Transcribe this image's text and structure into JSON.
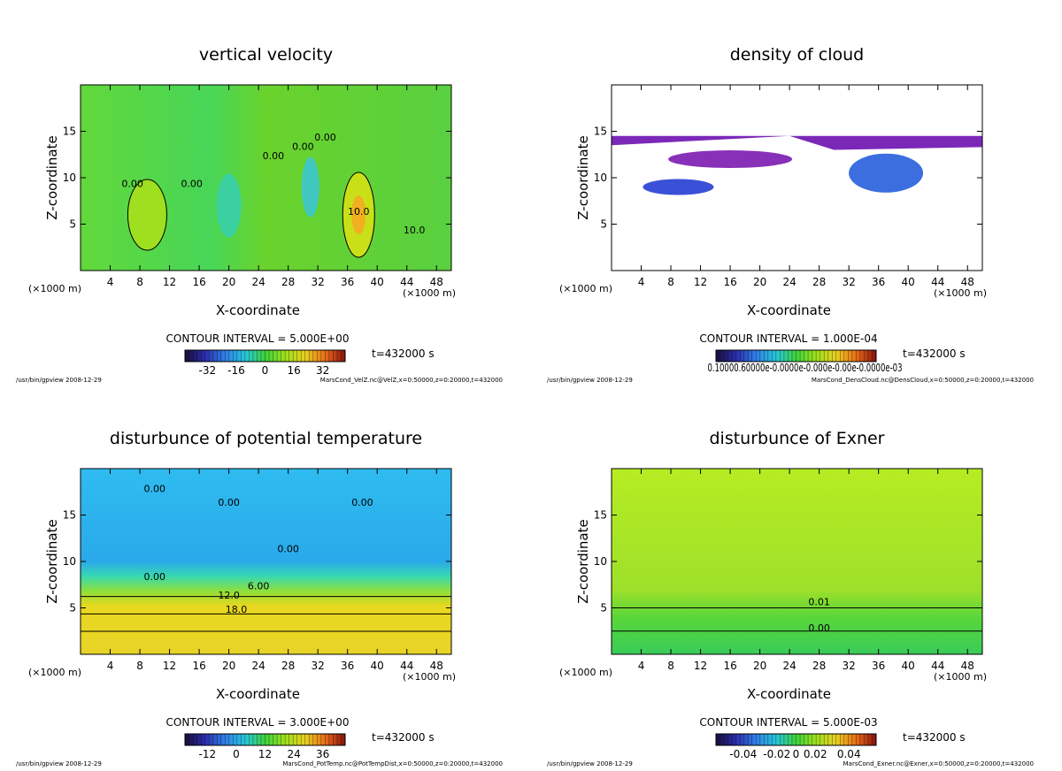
{
  "chart_data": [
    {
      "type": "heatmap",
      "title": "vertical velocity",
      "xlabel": "X-coordinate",
      "ylabel": "Z-coordinate",
      "x_unit": "(×1000 m)",
      "xlim": [
        0,
        50
      ],
      "ylim": [
        0,
        20
      ],
      "x_ticks": [
        4,
        8,
        12,
        16,
        20,
        24,
        28,
        32,
        36,
        40,
        44,
        48
      ],
      "y_ticks": [
        5,
        10,
        15
      ],
      "contour_interval": "CONTOUR INTERVAL = 5.000E+00",
      "time": "t=432000 s",
      "colorbar_ticks": [
        "-32",
        "-16",
        "0",
        "16",
        "32"
      ],
      "contour_labels": [
        "0.00",
        "0.00",
        "0.00",
        "0.00",
        "0.00",
        "10.0",
        "10.0"
      ],
      "footer_left": "/usr/bin/gpview  2008-12-29",
      "footer_right": "MarsCond_VelZ.nc@VelZ,x=0:50000,z=0:20000,t=432000"
    },
    {
      "type": "heatmap",
      "title": "density of cloud",
      "xlabel": "X-coordinate",
      "ylabel": "Z-coordinate",
      "x_unit": "(×1000 m)",
      "xlim": [
        0,
        50
      ],
      "ylim": [
        0,
        20
      ],
      "x_ticks": [
        4,
        8,
        12,
        16,
        20,
        24,
        28,
        32,
        36,
        40,
        44,
        48
      ],
      "y_ticks": [
        5,
        10,
        15
      ],
      "contour_interval": "CONTOUR INTERVAL = 1.000E-04",
      "time": "t=432000 s",
      "colorbar_ticks_text": "0.10000.60000e-0.0000e-0.000e-0.00e-0.0000e-03",
      "footer_left": "/usr/bin/gpview  2008-12-29",
      "footer_right": "MarsCond_DensCloud.nc@DensCloud,x=0:50000,z=0:20000,t=432000"
    },
    {
      "type": "heatmap",
      "title": "disturbunce of potential temperature",
      "xlabel": "X-coordinate",
      "ylabel": "Z-coordinate",
      "x_unit": "(×1000 m)",
      "xlim": [
        0,
        50
      ],
      "ylim": [
        0,
        20
      ],
      "x_ticks": [
        4,
        8,
        12,
        16,
        20,
        24,
        28,
        32,
        36,
        40,
        44,
        48
      ],
      "y_ticks": [
        5,
        10,
        15
      ],
      "contour_interval": "CONTOUR INTERVAL = 3.000E+00",
      "time": "t=432000 s",
      "colorbar_ticks": [
        "-12",
        "0",
        "12",
        "24",
        "36"
      ],
      "contour_labels": [
        "0.00",
        "0.00",
        "0.00",
        "0.00",
        "0.00",
        "6.00",
        "12.0",
        "18.0"
      ],
      "footer_left": "/usr/bin/gpview  2008-12-29",
      "footer_right": "MarsCond_PotTemp.nc@PotTempDist,x=0:50000,z=0:20000,t=432000"
    },
    {
      "type": "heatmap",
      "title": "disturbunce of Exner",
      "xlabel": "X-coordinate",
      "ylabel": "Z-coordinate",
      "x_unit": "(×1000 m)",
      "xlim": [
        0,
        50
      ],
      "ylim": [
        0,
        20
      ],
      "x_ticks": [
        4,
        8,
        12,
        16,
        20,
        24,
        28,
        32,
        36,
        40,
        44,
        48
      ],
      "y_ticks": [
        5,
        10,
        15
      ],
      "contour_interval": "CONTOUR INTERVAL = 5.000E-03",
      "time": "t=432000 s",
      "colorbar_ticks": [
        "-0.04",
        "-0.02",
        "0",
        "0.02",
        "0.04"
      ],
      "contour_labels": [
        "0.01",
        "0.00"
      ],
      "footer_left": "/usr/bin/gpview  2008-12-29",
      "footer_right": "MarsCond_Exner.nc@Exner,x=0:50000,z=0:20000,t=432000"
    }
  ]
}
